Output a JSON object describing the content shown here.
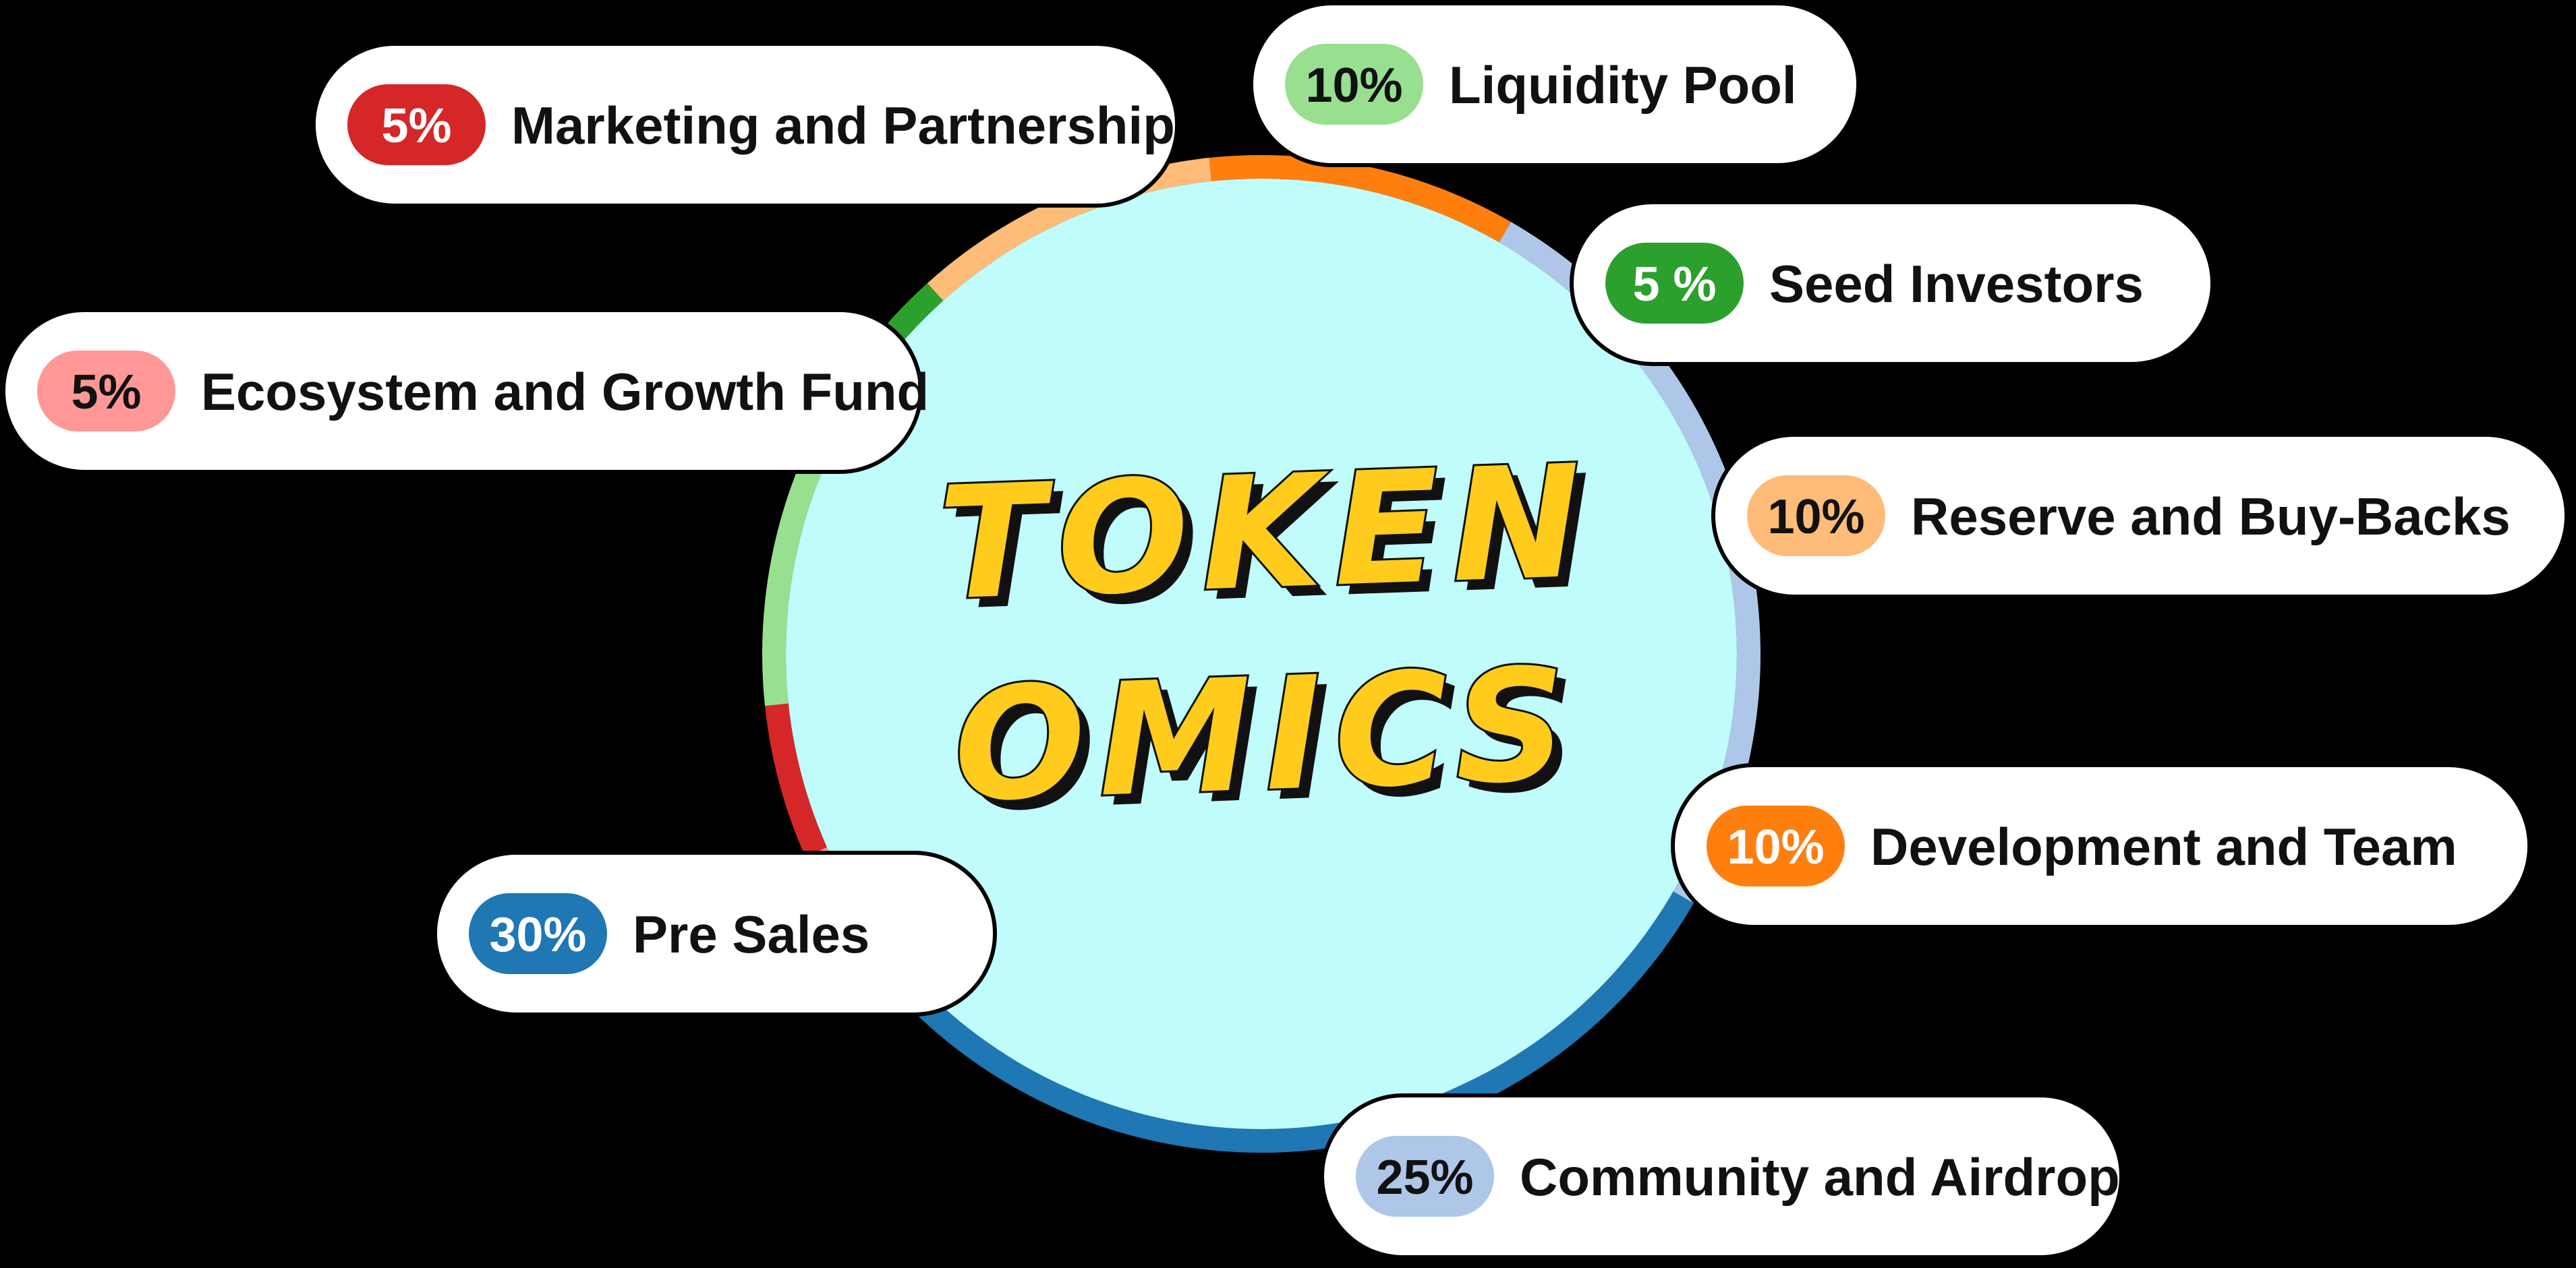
{
  "title_line1": "TOKEN",
  "title_line2": "OMICS",
  "chart_data": {
    "type": "pie",
    "style": "donut",
    "slices": [
      {
        "label": "Liquidity Pool",
        "pct_label": "10%",
        "value": 10,
        "color": "#98e08f",
        "badge_color": "#98e08f",
        "badge_text": "#111111"
      },
      {
        "label": "Seed Investors",
        "pct_label": "5 %",
        "value": 5,
        "color": "#2ca02c",
        "badge_color": "#2ca02c",
        "badge_text": "#ffffff"
      },
      {
        "label": "Reserve and Buy-Backs",
        "pct_label": "10%",
        "value": 10,
        "color": "#ffbb78",
        "badge_color": "#ffbb78",
        "badge_text": "#111111"
      },
      {
        "label": "Development and Team",
        "pct_label": "10%",
        "value": 10,
        "color": "#ff7f0e",
        "badge_color": "#ff7f0e",
        "badge_text": "#ffffff"
      },
      {
        "label": "Community and Airdrop",
        "pct_label": "25%",
        "value": 25,
        "color": "#aec7e8",
        "badge_color": "#aec7e8",
        "badge_text": "#111111"
      },
      {
        "label": "Pre Sales",
        "pct_label": "30%",
        "value": 30,
        "color": "#1f77b4",
        "badge_color": "#1f77b4",
        "badge_text": "#ffffff"
      },
      {
        "label": "Ecosystem and Growth Fund",
        "pct_label": "5%",
        "value": 5,
        "color": "#ff9896",
        "badge_color": "#ff9896",
        "badge_text": "#111111"
      },
      {
        "label": "Marketing and Partnership",
        "pct_label": "5%",
        "value": 5,
        "color": "#d62728",
        "badge_color": "#d62728",
        "badge_text": "#ffffff"
      }
    ]
  },
  "colors": {
    "background": "#000000",
    "center_fill": "#bffcfb",
    "title_fill": "#ffcc1d",
    "title_shadow": "#111111",
    "pill_fill": "#ffffff"
  }
}
